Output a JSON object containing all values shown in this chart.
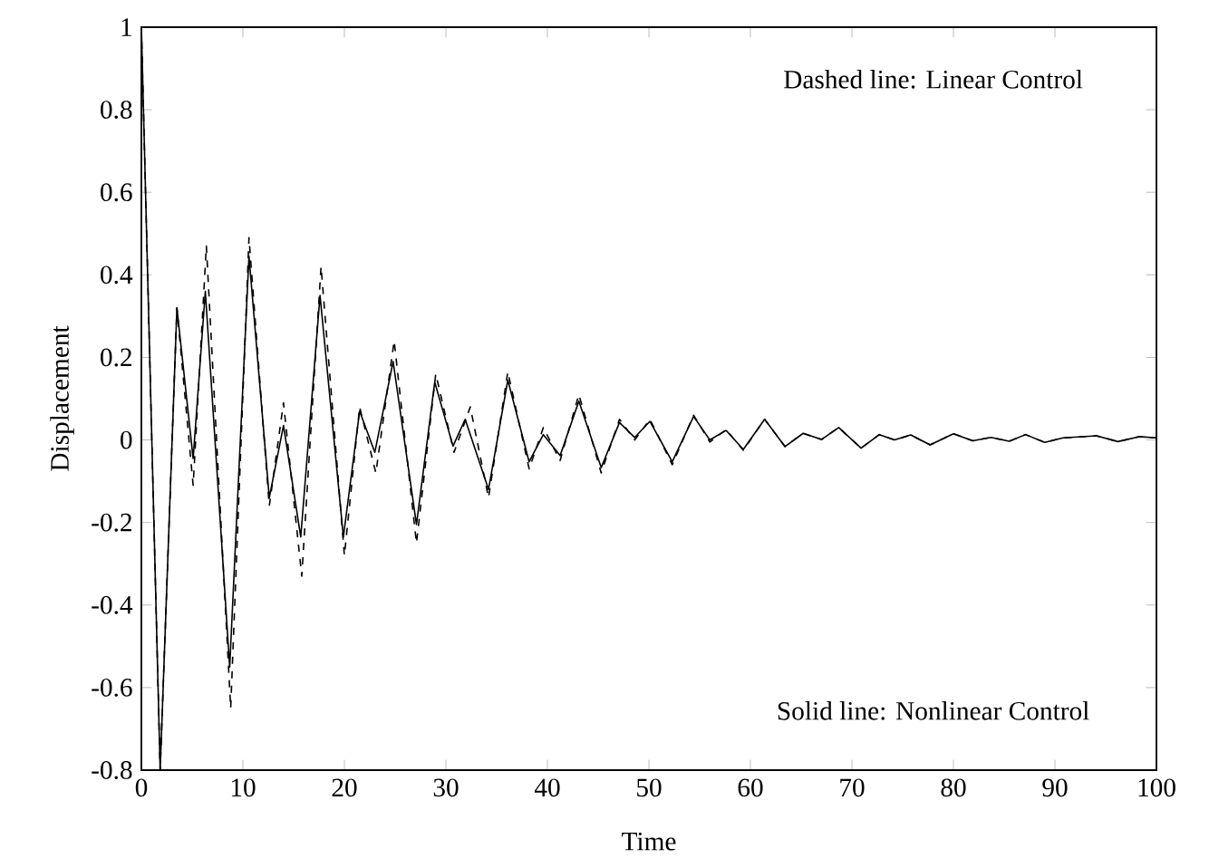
{
  "chart_data": {
    "type": "line",
    "xlabel": "Time",
    "ylabel": "Displacement",
    "xlim": [
      0,
      100
    ],
    "ylim": [
      -0.8,
      1
    ],
    "xticks": [
      0,
      10,
      20,
      30,
      40,
      50,
      60,
      70,
      80,
      90,
      100
    ],
    "yticks": [
      -0.8,
      -0.6,
      -0.4,
      -0.2,
      0,
      0.2,
      0.4,
      0.6,
      0.8,
      1
    ],
    "annotations": [
      "Dashed line: Linear Control",
      "Solid line: Nonlinear Control"
    ],
    "series": [
      {
        "color": "#000000",
        "line_style": "solid",
        "x": [
          0,
          1.85,
          3.5,
          5.1,
          6.3,
          8.7,
          10.6,
          12.6,
          14.0,
          15.7,
          17.6,
          19.9,
          21.5,
          23.0,
          24.8,
          27.1,
          28.9,
          30.7,
          31.9,
          34.2,
          36.1,
          38.2,
          39.6,
          41.25,
          43.1,
          45.3,
          47.1,
          48.6,
          50.1,
          52.3,
          54.4,
          56.0,
          57.6,
          59.3,
          61.4,
          63.4,
          65.2,
          67.0,
          68.7,
          70.9,
          72.7,
          74.2,
          75.8,
          77.7,
          80.0,
          81.9,
          83.7,
          85.5,
          87.1,
          89.0,
          90.8,
          94.1,
          96.2,
          98.3,
          100
        ],
        "values": [
          1,
          -0.8,
          0.32,
          -0.045,
          0.36,
          -0.55,
          0.445,
          -0.14,
          0.035,
          -0.235,
          0.35,
          -0.235,
          0.07,
          -0.03,
          0.19,
          -0.205,
          0.14,
          -0.015,
          0.05,
          -0.12,
          0.145,
          -0.053,
          0.013,
          -0.038,
          0.094,
          -0.067,
          0.042,
          0.006,
          0.045,
          -0.053,
          0.057,
          0,
          0.023,
          -0.023,
          0.05,
          -0.016,
          0.016,
          0.001,
          0.03,
          -0.02,
          0.013,
          0,
          0.012,
          -0.012,
          0.015,
          -0.002,
          0.006,
          -0.003,
          0.013,
          -0.006,
          0.005,
          0.01,
          -0.004,
          0.008,
          0.005
        ]
      },
      {
        "color": "#000000",
        "line_style": "dashed",
        "x": [
          0,
          1.85,
          3.5,
          5.1,
          6.4,
          8.8,
          10.6,
          12.6,
          14.0,
          15.8,
          17.7,
          20.0,
          21.5,
          23.1,
          24.9,
          27.1,
          29.0,
          30.8,
          32.4,
          34.2,
          36.1,
          38.2,
          39.6,
          41.25,
          43.1,
          45.3,
          47.1,
          48.6,
          50.1,
          52.3,
          54.4,
          56.0,
          57.6,
          59.3,
          61.4,
          63.4,
          65.2,
          67.0,
          68.7,
          70.9,
          72.7,
          74.2,
          75.8,
          77.7,
          80.0,
          81.9,
          83.7,
          85.5,
          87.1,
          89.0,
          90.8,
          94.1,
          96.2,
          98.3,
          100
        ],
        "values": [
          1,
          -0.8,
          0.32,
          -0.11,
          0.47,
          -0.65,
          0.49,
          -0.16,
          0.09,
          -0.33,
          0.42,
          -0.28,
          0.08,
          -0.08,
          0.24,
          -0.25,
          0.16,
          -0.03,
          0.08,
          -0.14,
          0.165,
          -0.07,
          0.03,
          -0.05,
          0.11,
          -0.08,
          0.05,
          0.0,
          0.05,
          -0.06,
          0.06,
          -0.005,
          0.025,
          -0.025,
          0.05,
          -0.016,
          0.016,
          0.001,
          0.03,
          -0.02,
          0.013,
          0,
          0.012,
          -0.012,
          0.015,
          -0.002,
          0.006,
          -0.003,
          0.013,
          -0.006,
          0.005,
          0.01,
          -0.004,
          0.008,
          0.005
        ]
      }
    ]
  }
}
